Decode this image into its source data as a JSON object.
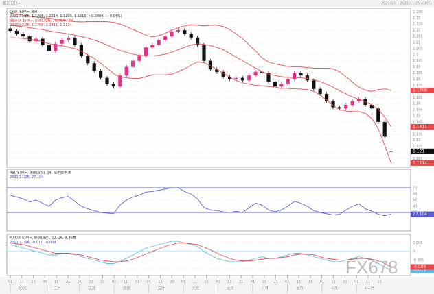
{
  "header": {
    "title": "图表 EUR=",
    "range": "2021/1/4 - 2021/11/26 (GMT)"
  },
  "watermark": "FX678",
  "x_axis": {
    "days": [
      "01",
      "11",
      "21",
      "01",
      "11",
      "21",
      "01",
      "11",
      "21",
      "01",
      "11",
      "21",
      "01",
      "11",
      "21",
      "01",
      "11",
      "21",
      "01",
      "11",
      "21",
      "01",
      "11",
      "21",
      "01",
      "11",
      "21",
      "01",
      "11",
      "21",
      "01",
      "11",
      "21"
    ],
    "months": [
      "2021",
      "二月",
      "三月",
      "四月",
      "五月",
      "六月",
      "七月",
      "八月",
      "九月",
      "十月",
      "十一月"
    ]
  },
  "chart_data": [
    {
      "type": "candlestick",
      "legend": [
        "Cndl, EUR=, Bid",
        "2021/11/26, 1.1206, 1.1214, 1.1203, 1.1210, +0.0004, (+0.04%)",
        "BBand, EUR=, Bid(Last), 20, 简单, 2.0",
        "2021/11/26, 1.1708, 1.1411, 1.1114"
      ],
      "legend_colors": [
        "#222",
        "#222",
        "#d62828",
        "#d62828"
      ],
      "up_color": "#e0338a",
      "down_color": "#111",
      "open": [
        1.2215,
        1.2195,
        1.217,
        1.215,
        1.211,
        1.213,
        1.208,
        1.203,
        1.209,
        1.212,
        1.214,
        1.208,
        1.199,
        1.193,
        1.187,
        1.181,
        1.176,
        1.174,
        1.183,
        1.19,
        1.195,
        1.199,
        1.206,
        1.208,
        1.212,
        1.215,
        1.219,
        1.22,
        1.217,
        1.214,
        1.208,
        1.195,
        1.188,
        1.186,
        1.182,
        1.18,
        1.181,
        1.179,
        1.183,
        1.186,
        1.185,
        1.178,
        1.174,
        1.176,
        1.18,
        1.185,
        1.183,
        1.179,
        1.172,
        1.168,
        1.162,
        1.157,
        1.156,
        1.159,
        1.162,
        1.164,
        1.159,
        1.156,
        1.145,
        1.1206
      ],
      "high": [
        1.223,
        1.221,
        1.2185,
        1.2165,
        1.2145,
        1.2145,
        1.2095,
        1.2105,
        1.2135,
        1.2155,
        1.2155,
        1.2095,
        1.2005,
        1.1945,
        1.1885,
        1.1825,
        1.1775,
        1.1845,
        1.1915,
        1.1965,
        1.2005,
        1.2075,
        1.2095,
        1.2135,
        1.2165,
        1.2205,
        1.2215,
        1.2215,
        1.2185,
        1.2155,
        1.2095,
        1.1965,
        1.1895,
        1.1875,
        1.1835,
        1.1825,
        1.1825,
        1.1845,
        1.1875,
        1.1875,
        1.1865,
        1.1795,
        1.1775,
        1.1815,
        1.1865,
        1.1865,
        1.1845,
        1.1805,
        1.1735,
        1.1695,
        1.1635,
        1.1585,
        1.1605,
        1.1635,
        1.1655,
        1.1655,
        1.1605,
        1.1575,
        1.1465,
        1.1214
      ],
      "low": [
        1.218,
        1.2155,
        1.2135,
        1.2095,
        1.2095,
        1.2065,
        1.2015,
        1.2015,
        1.2075,
        1.2105,
        1.2065,
        1.1975,
        1.1915,
        1.1855,
        1.1795,
        1.1745,
        1.1725,
        1.1725,
        1.1815,
        1.1885,
        1.1935,
        1.1975,
        1.2045,
        1.2065,
        1.2105,
        1.2135,
        1.2175,
        1.2155,
        1.2125,
        1.2065,
        1.1935,
        1.1865,
        1.1845,
        1.1805,
        1.1785,
        1.1785,
        1.1775,
        1.1775,
        1.1815,
        1.1835,
        1.1765,
        1.1725,
        1.1725,
        1.1745,
        1.1785,
        1.1815,
        1.1775,
        1.1705,
        1.1665,
        1.1605,
        1.1555,
        1.1545,
        1.1545,
        1.1575,
        1.1605,
        1.1575,
        1.1545,
        1.1435,
        1.1315,
        1.1203
      ],
      "close": [
        1.2195,
        1.217,
        1.215,
        1.211,
        1.213,
        1.208,
        1.203,
        1.209,
        1.212,
        1.214,
        1.208,
        1.199,
        1.193,
        1.187,
        1.181,
        1.176,
        1.174,
        1.183,
        1.19,
        1.195,
        1.199,
        1.206,
        1.208,
        1.212,
        1.215,
        1.219,
        1.22,
        1.217,
        1.214,
        1.208,
        1.195,
        1.188,
        1.186,
        1.182,
        1.18,
        1.181,
        1.179,
        1.183,
        1.186,
        1.185,
        1.178,
        1.174,
        1.176,
        1.18,
        1.185,
        1.183,
        1.179,
        1.172,
        1.168,
        1.162,
        1.157,
        1.156,
        1.159,
        1.162,
        1.164,
        1.159,
        1.156,
        1.145,
        1.133,
        1.121
      ],
      "last_color": "#111",
      "series": [
        {
          "color": "#e8474a",
          "values": [
            1.234,
            1.2333,
            1.2323,
            1.2315,
            1.2307,
            1.2303,
            1.23,
            1.229,
            1.2283,
            1.2278,
            1.227,
            1.2268,
            1.227,
            1.227,
            1.227,
            1.227,
            1.2265,
            1.225,
            1.223,
            1.2205,
            1.2185,
            1.216,
            1.2145,
            1.2155,
            1.2175,
            1.22,
            1.222,
            1.2235,
            1.2245,
            1.224,
            1.2235,
            1.224,
            1.224,
            1.223,
            1.2205,
            1.217,
            1.213,
            1.208,
            1.203,
            1.1975,
            1.194,
            1.1925,
            1.1915,
            1.1905,
            1.19,
            1.19,
            1.1895,
            1.189,
            1.189,
            1.189,
            1.1885,
            1.186,
            1.182,
            1.1775,
            1.1735,
            1.171,
            1.17,
            1.1715,
            1.172,
            1.1708
          ]
        },
        {
          "color": "#e8474a",
          "values": [
            1.224,
            1.2235,
            1.2228,
            1.222,
            1.2212,
            1.2205,
            1.2195,
            1.2185,
            1.2178,
            1.217,
            1.216,
            1.2148,
            1.2135,
            1.212,
            1.21,
            1.208,
            1.2055,
            1.2035,
            1.202,
            1.2005,
            1.1995,
            1.199,
            1.199,
            1.1995,
            1.2005,
            1.202,
            1.204,
            1.206,
            1.208,
            1.209,
            1.2085,
            1.2075,
            1.206,
            1.204,
            1.201,
            1.198,
            1.195,
            1.192,
            1.189,
            1.186,
            1.184,
            1.183,
            1.182,
            1.1815,
            1.181,
            1.181,
            1.1805,
            1.1795,
            1.178,
            1.176,
            1.1735,
            1.1705,
            1.168,
            1.1655,
            1.1635,
            1.1615,
            1.159,
            1.1555,
            1.149,
            1.1411
          ]
        },
        {
          "color": "#e8474a",
          "values": [
            1.214,
            1.2137,
            1.2133,
            1.2125,
            1.2117,
            1.2107,
            1.209,
            1.208,
            1.2073,
            1.2062,
            1.205,
            1.2028,
            1.2,
            1.197,
            1.193,
            1.189,
            1.1845,
            1.182,
            1.181,
            1.1805,
            1.1805,
            1.182,
            1.1835,
            1.1835,
            1.1835,
            1.184,
            1.186,
            1.1885,
            1.1915,
            1.194,
            1.1935,
            1.191,
            1.188,
            1.185,
            1.1815,
            1.179,
            1.177,
            1.176,
            1.175,
            1.1745,
            1.174,
            1.1735,
            1.1725,
            1.1725,
            1.172,
            1.172,
            1.1715,
            1.17,
            1.167,
            1.163,
            1.1585,
            1.155,
            1.154,
            1.1535,
            1.1535,
            1.152,
            1.148,
            1.1395,
            1.126,
            1.1114
          ]
        }
      ],
      "ylim": [
        1.108,
        1.238
      ],
      "yticks": [
        1.115,
        1.12,
        1.125,
        1.13,
        1.135,
        1.14,
        1.145,
        1.15,
        1.155,
        1.16,
        1.165,
        1.17,
        1.175,
        1.18,
        1.185,
        1.19,
        1.195,
        1.2,
        1.205,
        1.21,
        1.215,
        1.22,
        1.225,
        1.23,
        1.235
      ],
      "grid": true
    },
    {
      "type": "line",
      "legend": [
        "RSI, EUR=, Bid(Last), 14, 威尔德平滑",
        "2021/11/26, 27.104"
      ],
      "legend_colors": [
        "#222",
        "#3b3bc4"
      ],
      "series": [
        {
          "color": "#5a5ad6",
          "values": [
            58,
            55,
            52,
            47,
            50,
            45,
            40,
            50,
            54,
            56,
            48,
            40,
            36,
            33,
            30,
            29,
            28,
            42,
            50,
            55,
            58,
            63,
            64,
            66,
            68,
            70,
            70,
            64,
            60,
            52,
            38,
            34,
            33,
            31,
            30,
            32,
            30,
            38,
            45,
            42,
            34,
            31,
            34,
            40,
            48,
            45,
            40,
            33,
            30,
            28,
            26,
            27,
            34,
            40,
            44,
            36,
            32,
            27,
            25,
            27.104
          ]
        }
      ],
      "hlines": [
        70,
        30
      ],
      "hline_color": "#6b6bdb",
      "ylim": [
        0,
        100
      ],
      "yticks": [
        30,
        40,
        50,
        60,
        70
      ],
      "grid": true
    },
    {
      "type": "line",
      "legend": [
        "MACD, EUR=, Bid(Last), 12, 26, 9, 指数",
        "2021/11/26, -0.011, -0.009"
      ],
      "legend_colors": [
        "#222",
        "#3b3bc4"
      ],
      "series": [
        {
          "color": "#5bb8e8",
          "values": [
            0.004,
            0.003,
            0.002,
            0.001,
            0,
            -0.001,
            -0.002,
            -0.002,
            -0.001,
            -0.001,
            -0.002,
            -0.003,
            -0.004,
            -0.005,
            -0.006,
            -0.007,
            -0.007,
            -0.006,
            -0.004,
            -0.002,
            0,
            0.002,
            0.003,
            0.004,
            0.005,
            0.006,
            0.006,
            0.005,
            0.004,
            0.003,
            0,
            -0.002,
            -0.004,
            -0.005,
            -0.006,
            -0.006,
            -0.006,
            -0.005,
            -0.004,
            -0.003,
            -0.004,
            -0.004,
            -0.003,
            -0.002,
            -0.001,
            -0.001,
            -0.002,
            -0.003,
            -0.004,
            -0.005,
            -0.006,
            -0.006,
            -0.005,
            -0.004,
            -0.003,
            -0.004,
            -0.005,
            -0.007,
            -0.009,
            -0.011
          ]
        },
        {
          "color": "#e8474a",
          "values": [
            0.005,
            0.0045,
            0.004,
            0.003,
            0.002,
            0.001,
            0,
            -0.001,
            -0.001,
            -0.001,
            -0.0015,
            -0.002,
            -0.003,
            -0.004,
            -0.005,
            -0.0055,
            -0.006,
            -0.006,
            -0.0055,
            -0.0045,
            -0.003,
            -0.0015,
            0,
            0.0015,
            0.003,
            0.004,
            0.005,
            0.005,
            0.0045,
            0.004,
            0.0025,
            0.001,
            -0.001,
            -0.0025,
            -0.004,
            -0.005,
            -0.0055,
            -0.0055,
            -0.005,
            -0.0045,
            -0.004,
            -0.004,
            -0.0035,
            -0.003,
            -0.002,
            -0.0015,
            -0.0015,
            -0.002,
            -0.003,
            -0.004,
            -0.0045,
            -0.005,
            -0.005,
            -0.0045,
            -0.004,
            -0.004,
            -0.0045,
            -0.0055,
            -0.007,
            -0.009
          ]
        }
      ],
      "hlines": [
        0
      ],
      "hline_color": "#8fd3f0",
      "ylim": [
        -0.014,
        0.01
      ],
      "yticks": [
        -0.01,
        -0.005,
        0,
        0.005
      ],
      "grid": true
    }
  ]
}
